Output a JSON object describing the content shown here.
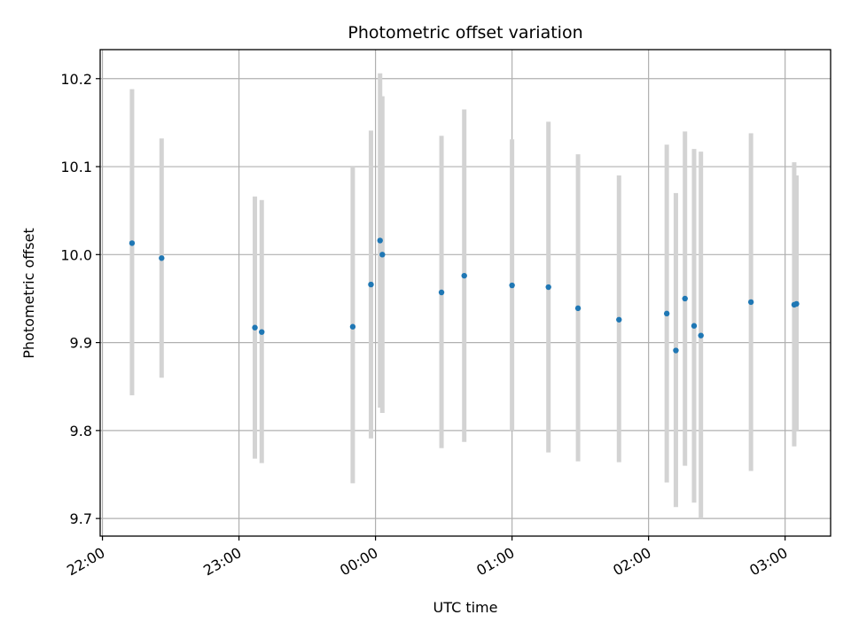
{
  "chart_data": {
    "type": "scatter",
    "title": "Photometric offset variation",
    "xlabel": "UTC time",
    "ylabel": "Photometric offset",
    "x_axis_kind": "time",
    "x_tick_labels": [
      "22:00",
      "23:00",
      "00:00",
      "01:00",
      "02:00",
      "03:00"
    ],
    "x_tick_values": [
      "22:00",
      "23:00",
      "00:00",
      "01:00",
      "02:00",
      "03:00"
    ],
    "x_tick_label_rotation_deg": 30,
    "y_tick_labels": [
      "9.7",
      "9.8",
      "9.9",
      "10.0",
      "10.1",
      "10.2"
    ],
    "y_tick_values": [
      9.7,
      9.8,
      9.9,
      10.0,
      10.1,
      10.2
    ],
    "xlim": [
      "21:59",
      "03:20"
    ],
    "ylim": [
      9.68,
      10.233
    ],
    "grid": true,
    "colors": {
      "points": "#1f77b4",
      "error_bars": "#d3d3d3",
      "grid": "#b0b0b0"
    },
    "series": [
      {
        "points": [
          {
            "x": "22:13",
            "y": 10.013,
            "low": 9.84,
            "high": 10.188
          },
          {
            "x": "22:26",
            "y": 9.996,
            "low": 9.86,
            "high": 10.132
          },
          {
            "x": "23:07",
            "y": 9.917,
            "low": 9.768,
            "high": 10.066
          },
          {
            "x": "23:10",
            "y": 9.912,
            "low": 9.763,
            "high": 10.062
          },
          {
            "x": "23:50",
            "y": 9.918,
            "low": 9.74,
            "high": 10.1
          },
          {
            "x": "23:58",
            "y": 9.966,
            "low": 9.791,
            "high": 10.141
          },
          {
            "x": "00:02",
            "y": 10.016,
            "low": 9.826,
            "high": 10.206
          },
          {
            "x": "00:03",
            "y": 10.0,
            "low": 9.82,
            "high": 10.18
          },
          {
            "x": "00:29",
            "y": 9.957,
            "low": 9.78,
            "high": 10.135
          },
          {
            "x": "00:39",
            "y": 9.976,
            "low": 9.787,
            "high": 10.165
          },
          {
            "x": "01:00",
            "y": 9.965,
            "low": 9.8,
            "high": 10.131
          },
          {
            "x": "01:16",
            "y": 9.963,
            "low": 9.775,
            "high": 10.151
          },
          {
            "x": "01:29",
            "y": 9.939,
            "low": 9.765,
            "high": 10.114
          },
          {
            "x": "01:47",
            "y": 9.926,
            "low": 9.764,
            "high": 10.09
          },
          {
            "x": "02:08",
            "y": 9.933,
            "low": 9.741,
            "high": 10.125
          },
          {
            "x": "02:12",
            "y": 9.891,
            "low": 9.713,
            "high": 10.07
          },
          {
            "x": "02:16",
            "y": 9.95,
            "low": 9.76,
            "high": 10.14
          },
          {
            "x": "02:20",
            "y": 9.919,
            "low": 9.718,
            "high": 10.12
          },
          {
            "x": "02:23",
            "y": 9.908,
            "low": 9.7,
            "high": 10.117
          },
          {
            "x": "02:45",
            "y": 9.946,
            "low": 9.754,
            "high": 10.138
          },
          {
            "x": "03:04",
            "y": 9.943,
            "low": 9.782,
            "high": 10.105
          },
          {
            "x": "03:05",
            "y": 9.944,
            "low": 9.8,
            "high": 10.09
          }
        ]
      }
    ]
  }
}
